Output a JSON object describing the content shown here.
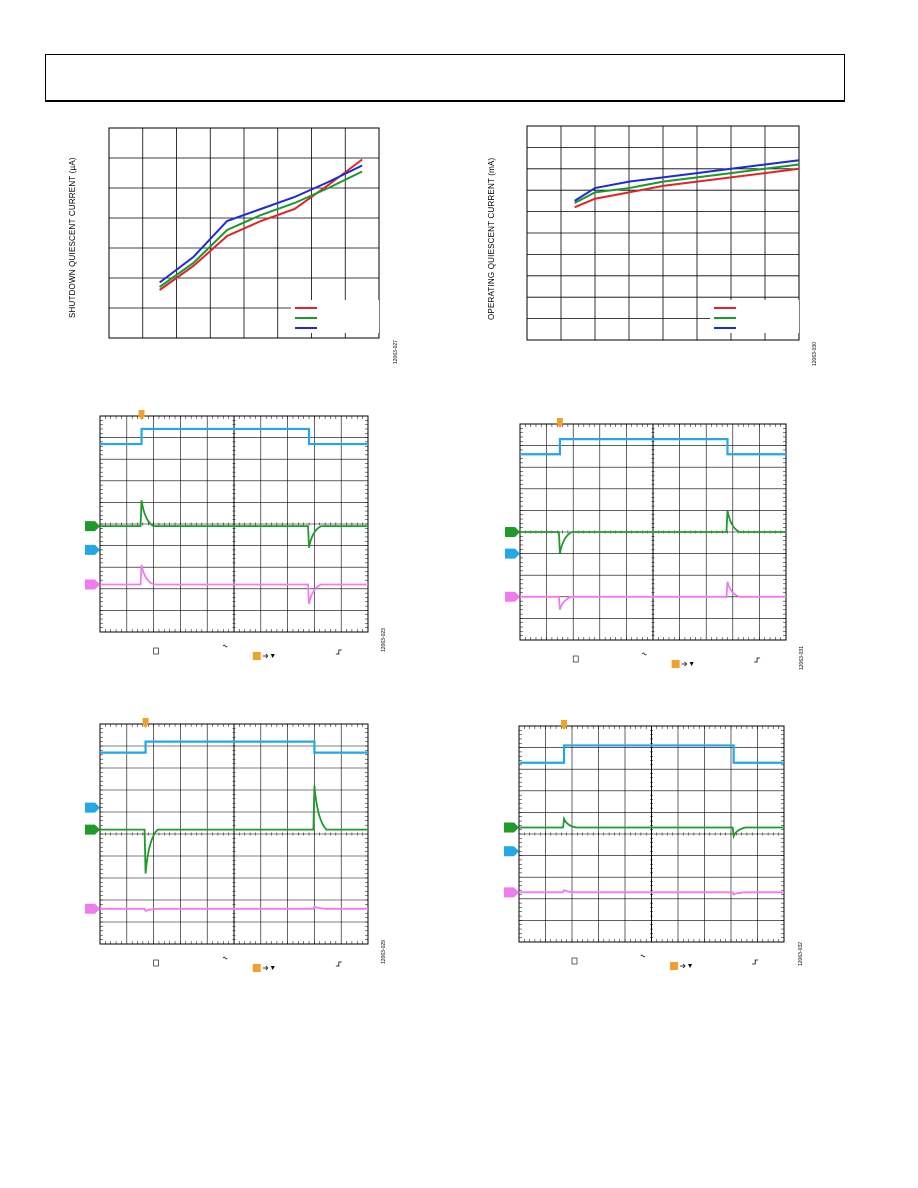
{
  "page": {
    "header_box": ""
  },
  "colors": {
    "red": "#e0242a",
    "green": "#1a9a2a",
    "blue": "#1c2bd6",
    "ch_blue": "#22a8e6",
    "ch_green": "#1f9a2b",
    "ch_pink": "#ee7cee",
    "trigger": "#f2a02c",
    "grid": "#000000"
  },
  "chart_data": [
    {
      "type": "line",
      "ylabel": "SHUTDOWN QUIESCENT CURRENT (µA)",
      "figure_code": "12063-027",
      "xlim": [
        0,
        8
      ],
      "ylim": [
        0,
        7
      ],
      "legend_placement": "bottom-right",
      "legend_text": [
        "",
        "",
        ""
      ],
      "series": [
        {
          "color": "red",
          "x": [
            1.5,
            2.5,
            3.5,
            4.5,
            5.5,
            6.5,
            7.5
          ],
          "y": [
            1.6,
            2.4,
            3.4,
            3.9,
            4.3,
            5.1,
            5.95
          ]
        },
        {
          "color": "green",
          "x": [
            1.5,
            2.5,
            3.5,
            4.5,
            5.5,
            6.5,
            7.5
          ],
          "y": [
            1.7,
            2.5,
            3.6,
            4.1,
            4.5,
            5.0,
            5.55
          ]
        },
        {
          "color": "blue",
          "x": [
            1.5,
            2.5,
            3.5,
            4.5,
            5.5,
            6.5,
            7.5
          ],
          "y": [
            1.85,
            2.7,
            3.9,
            4.3,
            4.7,
            5.2,
            5.75
          ]
        }
      ]
    },
    {
      "type": "line",
      "ylabel": "OPERATING QUIESCENT CURRENT (mA)",
      "figure_code": "12063-030",
      "xlim": [
        0,
        8
      ],
      "ylim": [
        0,
        10
      ],
      "legend_placement": "bottom-right",
      "legend_text": [
        "",
        "",
        ""
      ],
      "series": [
        {
          "color": "red",
          "x": [
            1.4,
            2,
            3,
            4,
            5,
            6,
            7,
            8
          ],
          "y": [
            6.2,
            6.6,
            6.9,
            7.2,
            7.4,
            7.6,
            7.8,
            8.0
          ]
        },
        {
          "color": "green",
          "x": [
            1.4,
            2,
            3,
            4,
            5,
            6,
            7,
            8
          ],
          "y": [
            6.4,
            6.9,
            7.1,
            7.4,
            7.6,
            7.8,
            8.0,
            8.2
          ]
        },
        {
          "color": "blue",
          "x": [
            1.4,
            2,
            3,
            4,
            5,
            6,
            7,
            8
          ],
          "y": [
            6.5,
            7.1,
            7.4,
            7.6,
            7.8,
            8.0,
            8.2,
            8.4
          ]
        }
      ]
    },
    {
      "type": "line",
      "scope": true,
      "figure_code": "12063-023",
      "events": {
        "up": 0.155,
        "down": 0.78
      },
      "channels": [
        {
          "name": "ch-blue",
          "color": "ch_blue",
          "level": 0.13,
          "step": -0.07,
          "spike": 0,
          "marker": 0.62
        },
        {
          "name": "ch-green",
          "color": "ch_green",
          "level": 0.51,
          "step": 0,
          "spike": -0.12,
          "spike2": 0.1,
          "marker": 0.51
        },
        {
          "name": "ch-pink",
          "color": "ch_pink",
          "level": 0.78,
          "step": 0,
          "spike": -0.09,
          "spike2": 0.09,
          "marker": 0.78
        }
      ]
    },
    {
      "type": "line",
      "scope": true,
      "figure_code": "12063-031",
      "events": {
        "up": 0.15,
        "down": 0.78
      },
      "channels": [
        {
          "name": "ch-blue",
          "color": "ch_blue",
          "level": 0.14,
          "step": -0.07,
          "spike": 0,
          "marker": 0.6
        },
        {
          "name": "ch-green",
          "color": "ch_green",
          "level": 0.5,
          "step": 0,
          "spike": 0.1,
          "spike2": -0.1,
          "marker": 0.5
        },
        {
          "name": "ch-pink",
          "color": "ch_pink",
          "level": 0.8,
          "step": 0,
          "spike": 0.06,
          "spike2": -0.07,
          "marker": 0.8
        }
      ]
    },
    {
      "type": "line",
      "scope": true,
      "figure_code": "12063-029",
      "events": {
        "up": 0.17,
        "down": 0.8
      },
      "channels": [
        {
          "name": "ch-blue",
          "color": "ch_blue",
          "level": 0.13,
          "step": -0.05,
          "spike": 0,
          "marker": 0.38
        },
        {
          "name": "ch-green",
          "color": "ch_green",
          "level": 0.48,
          "step": 0,
          "spike": 0.2,
          "spike2": -0.2,
          "marker": 0.48
        },
        {
          "name": "ch-pink",
          "color": "ch_pink",
          "level": 0.84,
          "step": 0,
          "spike": 0.01,
          "spike2": -0.01,
          "marker": 0.84
        }
      ]
    },
    {
      "type": "line",
      "scope": true,
      "figure_code": "12063-032",
      "events": {
        "up": 0.17,
        "down": 0.81
      },
      "channels": [
        {
          "name": "ch-blue",
          "color": "ch_blue",
          "level": 0.17,
          "step": -0.08,
          "spike": 0,
          "marker": 0.58
        },
        {
          "name": "ch-green",
          "color": "ch_green",
          "level": 0.47,
          "step": 0,
          "spike": -0.04,
          "spike2": 0.04,
          "marker": 0.47
        },
        {
          "name": "ch-pink",
          "color": "ch_pink",
          "level": 0.77,
          "step": 0,
          "spike": -0.01,
          "spike2": 0.01,
          "marker": 0.77
        }
      ]
    }
  ]
}
